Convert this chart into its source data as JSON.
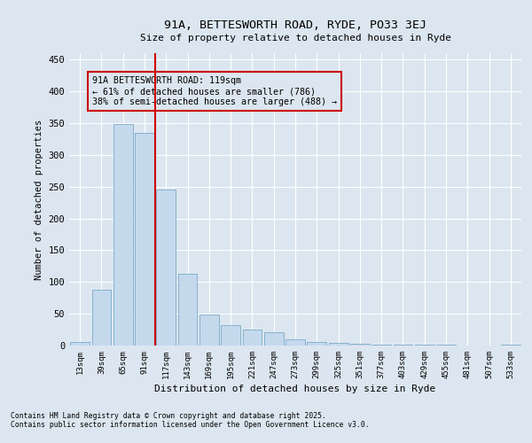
{
  "title1": "91A, BETTESWORTH ROAD, RYDE, PO33 3EJ",
  "title2": "Size of property relative to detached houses in Ryde",
  "xlabel": "Distribution of detached houses by size in Ryde",
  "ylabel": "Number of detached properties",
  "categories": [
    "13sqm",
    "39sqm",
    "65sqm",
    "91sqm",
    "117sqm",
    "143sqm",
    "169sqm",
    "195sqm",
    "221sqm",
    "247sqm",
    "273sqm",
    "299sqm",
    "325sqm",
    "351sqm",
    "377sqm",
    "403sqm",
    "429sqm",
    "455sqm",
    "481sqm",
    "507sqm",
    "533sqm"
  ],
  "values": [
    6,
    88,
    348,
    335,
    246,
    113,
    49,
    32,
    25,
    21,
    10,
    5,
    4,
    3,
    2,
    1,
    1,
    1,
    0,
    0,
    2
  ],
  "bar_color": "#c5d9ed",
  "bar_edge_color": "#7aaac8",
  "bg_color": "#dce6f0",
  "grid_color": "#ffffff",
  "vline_color": "#cc0000",
  "vline_pos": 3.5,
  "annotation_text": "91A BETTESWORTH ROAD: 119sqm\n← 61% of detached houses are smaller (786)\n38% of semi-detached houses are larger (488) →",
  "annotation_box_color": "#cc0000",
  "ylim": [
    0,
    460
  ],
  "yticks": [
    0,
    50,
    100,
    150,
    200,
    250,
    300,
    350,
    400,
    450
  ],
  "footer1": "Contains HM Land Registry data © Crown copyright and database right 2025.",
  "footer2": "Contains public sector information licensed under the Open Government Licence v3.0."
}
